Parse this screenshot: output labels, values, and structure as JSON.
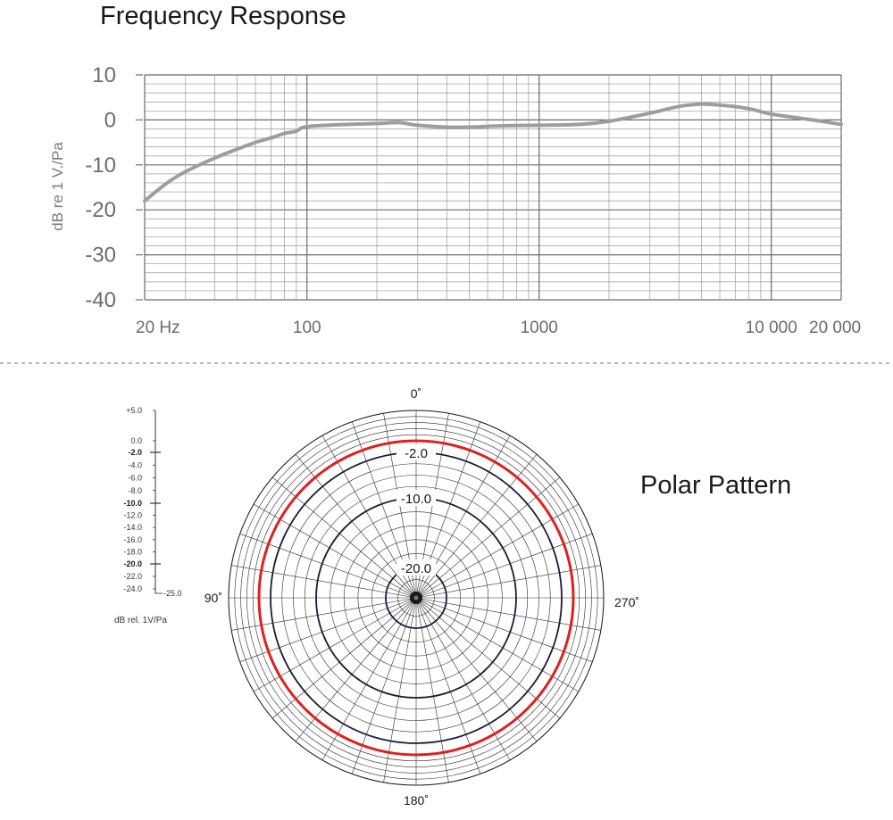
{
  "chart_data": [
    {
      "type": "line",
      "title": "Frequency Response",
      "ylabel": "dB re 1 V./Pa",
      "xlabel": "",
      "xscale": "log",
      "xlim": [
        20,
        20000
      ],
      "ylim": [
        -40,
        10
      ],
      "grid": true,
      "y_ticks": [
        10,
        0,
        -10,
        -20,
        -30,
        -40
      ],
      "y_tick_labels": [
        "10",
        "0",
        "-10",
        "-20",
        "-30",
        "-40"
      ],
      "x_ticks": [
        20,
        100,
        1000,
        10000,
        20000
      ],
      "x_tick_labels": [
        "20 Hz",
        "100",
        "1000",
        "10 000",
        "20 000"
      ],
      "series": [
        {
          "x": [
            20,
            25,
            30,
            40,
            50,
            60,
            70,
            80,
            90,
            100,
            150,
            200,
            250,
            300,
            400,
            500,
            700,
            1000,
            1500,
            2000,
            3000,
            4000,
            5000,
            6000,
            8000,
            10000,
            15000,
            20000
          ],
          "y": [
            -18,
            -14,
            -11.5,
            -8.5,
            -6.5,
            -5,
            -4,
            -3,
            -2.5,
            -1.5,
            -1,
            -0.8,
            -0.6,
            -1.2,
            -1.6,
            -1.6,
            -1.3,
            -1.2,
            -1,
            -0.3,
            1.5,
            3,
            3.5,
            3.3,
            2.5,
            1.3,
            0,
            -1
          ],
          "color": "#9d9d9d"
        }
      ]
    },
    {
      "type": "polar",
      "title": "Polar Pattern",
      "angle_labels": [
        "0˚",
        "90˚",
        "180˚",
        "270˚"
      ],
      "ring_labels": [
        "-2.0",
        "-10.0",
        "-20.0"
      ],
      "scale_labels": [
        "+5.0",
        "0.0",
        "-2.0",
        "-4.0",
        "-6.0",
        "-8.0",
        "-10.0",
        "-12.0",
        "-14.0",
        "-16.0",
        "-18.0",
        "-20.0",
        "-22.0",
        "-24.0",
        "-25.0"
      ],
      "scale_unit": "dB rel. 1V/Pa",
      "series": [
        {
          "name": "",
          "level_db": 0.0,
          "pattern": "omnidirectional",
          "color": "#e02020"
        },
        {
          "name": "",
          "level_db": -2.0,
          "pattern": "omnidirectional",
          "color": "#1c1a3a"
        },
        {
          "name": "",
          "level_db": -10.0,
          "pattern": "omnidirectional",
          "color": "#1c1a3a"
        },
        {
          "name": "",
          "level_db": -20.0,
          "pattern": "omnidirectional",
          "color": "#1c1a3a"
        }
      ]
    }
  ]
}
